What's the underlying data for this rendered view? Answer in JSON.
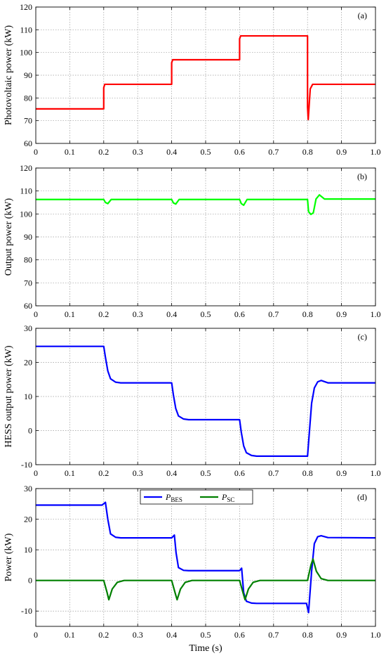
{
  "chart_data": [
    {
      "id": "a",
      "type": "line",
      "panel_label": "(a)",
      "ylabel": "Photovoltaic power (kW)",
      "xlabel": "",
      "xlim": [
        0,
        1.0
      ],
      "ylim": [
        60,
        120
      ],
      "xticks": [
        "0",
        "0.1",
        "0.2",
        "0.3",
        "0.4",
        "0.5",
        "0.6",
        "0.7",
        "0.8",
        "0.9",
        "1.0"
      ],
      "yticks": [
        "60",
        "70",
        "80",
        "90",
        "100",
        "110",
        "120"
      ],
      "grid": true,
      "series": [
        {
          "color": "#ff0000",
          "x": [
            0,
            0.2,
            0.2,
            0.203,
            0.4,
            0.4,
            0.403,
            0.6,
            0.6,
            0.603,
            0.798,
            0.8,
            0.8,
            0.802,
            0.808,
            0.815,
            1.0
          ],
          "y": [
            75.2,
            75.2,
            84.5,
            86,
            86,
            95.5,
            96.8,
            96.8,
            106,
            107.3,
            107.3,
            107.3,
            76,
            70.5,
            84,
            86,
            86
          ]
        }
      ]
    },
    {
      "id": "b",
      "type": "line",
      "panel_label": "(b)",
      "ylabel": "Output power (kW)",
      "xlabel": "",
      "xlim": [
        0,
        1.0
      ],
      "ylim": [
        60,
        120
      ],
      "xticks": [
        "0",
        "0.1",
        "0.2",
        "0.3",
        "0.4",
        "0.5",
        "0.6",
        "0.7",
        "0.8",
        "0.9",
        "1.0"
      ],
      "yticks": [
        "60",
        "70",
        "80",
        "90",
        "100",
        "110",
        "120"
      ],
      "grid": true,
      "series": [
        {
          "color": "#00ff00",
          "x": [
            0,
            0.2,
            0.205,
            0.212,
            0.222,
            0.4,
            0.405,
            0.412,
            0.422,
            0.6,
            0.605,
            0.612,
            0.622,
            0.8,
            0.803,
            0.81,
            0.817,
            0.825,
            0.835,
            0.85,
            1.0
          ],
          "y": [
            106.3,
            106.3,
            105,
            104.5,
            106.3,
            106.3,
            104.8,
            104.3,
            106.3,
            106.3,
            104.5,
            103.8,
            106.3,
            106.3,
            101,
            99.8,
            100.5,
            106.5,
            108.3,
            106.5,
            106.5
          ]
        }
      ]
    },
    {
      "id": "c",
      "type": "line",
      "panel_label": "(c)",
      "ylabel": "HESS output power (kW)",
      "xlabel": "",
      "xlim": [
        0,
        1.0
      ],
      "ylim": [
        -10,
        30
      ],
      "xticks": [
        "0",
        "0.1",
        "0.2",
        "0.3",
        "0.4",
        "0.5",
        "0.6",
        "0.7",
        "0.8",
        "0.9",
        "1.0"
      ],
      "yticks": [
        "-10",
        "0",
        "10",
        "20",
        "30"
      ],
      "grid": true,
      "series": [
        {
          "color": "#0000ff",
          "x": [
            0,
            0.2,
            0.205,
            0.212,
            0.22,
            0.235,
            0.25,
            0.4,
            0.405,
            0.412,
            0.42,
            0.435,
            0.45,
            0.6,
            0.605,
            0.612,
            0.62,
            0.635,
            0.65,
            0.8,
            0.805,
            0.812,
            0.82,
            0.83,
            0.84,
            0.86,
            1.0
          ],
          "y": [
            24.7,
            24.7,
            21.5,
            17.5,
            15.2,
            14.2,
            14,
            14,
            10.5,
            6.5,
            4.3,
            3.4,
            3.2,
            3.2,
            -0.5,
            -4.5,
            -6.5,
            -7.3,
            -7.5,
            -7.5,
            -1,
            8,
            12.5,
            14.3,
            14.7,
            14,
            14
          ]
        }
      ]
    },
    {
      "id": "d",
      "type": "line",
      "panel_label": "(d)",
      "ylabel": "Power (kW)",
      "xlabel": "Time (s)",
      "xlim": [
        0,
        1.0
      ],
      "ylim": [
        -15,
        30
      ],
      "xticks": [
        "0",
        "0.1",
        "0.2",
        "0.3",
        "0.4",
        "0.5",
        "0.6",
        "0.7",
        "0.8",
        "0.9",
        "1.0"
      ],
      "yticks": [
        "-10",
        "0",
        "10",
        "20",
        "30"
      ],
      "grid": true,
      "legend": "top-center",
      "series": [
        {
          "name": "P",
          "subscript": "BES",
          "color": "#0000ff",
          "x": [
            0,
            0.195,
            0.205,
            0.212,
            0.22,
            0.235,
            0.25,
            0.4,
            0.408,
            0.413,
            0.42,
            0.435,
            0.45,
            0.6,
            0.606,
            0.612,
            0.62,
            0.635,
            0.65,
            0.797,
            0.803,
            0.812,
            0.82,
            0.83,
            0.84,
            0.86,
            1.0
          ],
          "y": [
            24.6,
            24.6,
            25.5,
            20,
            15.2,
            14.1,
            13.9,
            13.9,
            14.8,
            9,
            4.2,
            3.3,
            3.2,
            3.2,
            4,
            -4,
            -6.8,
            -7.4,
            -7.5,
            -7.5,
            -10.5,
            3,
            12,
            14.3,
            14.6,
            14,
            13.9
          ]
        },
        {
          "name": "P",
          "subscript": "SC",
          "color": "#008000",
          "x": [
            0,
            0.2,
            0.21,
            0.215,
            0.225,
            0.24,
            0.26,
            0.4,
            0.41,
            0.416,
            0.426,
            0.44,
            0.46,
            0.6,
            0.61,
            0.616,
            0.626,
            0.64,
            0.66,
            0.8,
            0.81,
            0.816,
            0.826,
            0.84,
            0.86,
            1.0
          ],
          "y": [
            0,
            0,
            -4,
            -6.3,
            -2.8,
            -0.6,
            0,
            0,
            -4,
            -6.3,
            -2.8,
            -0.6,
            0,
            0,
            -4,
            -6.3,
            -2.8,
            -0.6,
            0,
            0,
            5,
            7,
            3,
            0.6,
            0,
            0
          ]
        }
      ]
    }
  ]
}
